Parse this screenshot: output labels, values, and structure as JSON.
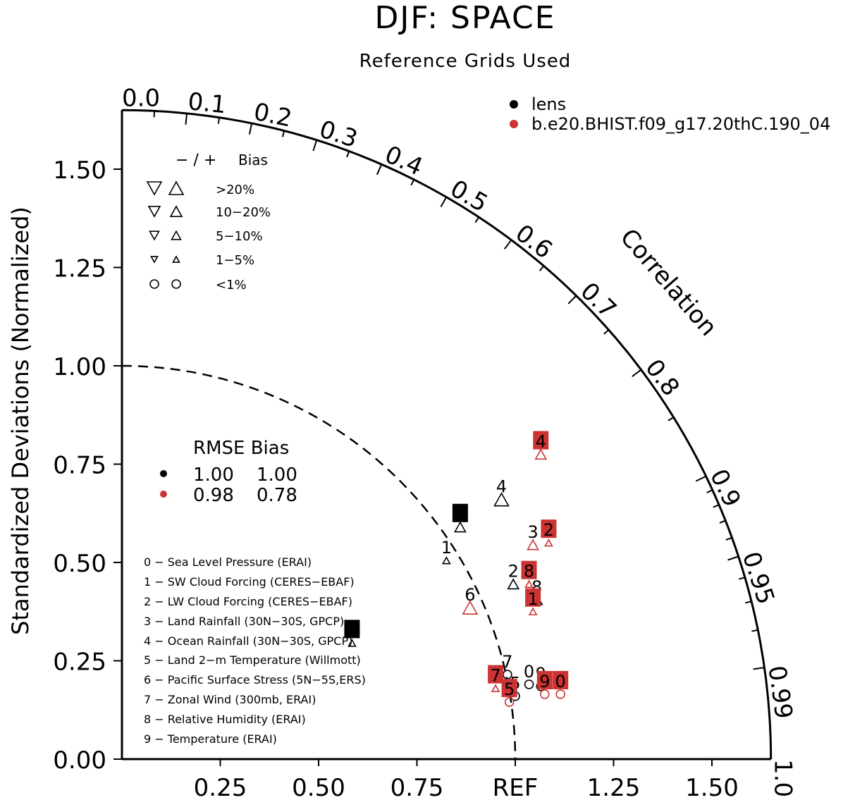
{
  "chart_data": {
    "type": "taylor",
    "title": "DJF: SPACE",
    "subtitle": "Reference Grids Used",
    "ylabel": "Standardized Deviations (Normalized)",
    "correlation_label": "Correlation",
    "ref_label": "REF",
    "std_max": 1.65,
    "x_ticks": [
      "0.25",
      "0.50",
      "0.75",
      "REF",
      "1.25",
      "1.50"
    ],
    "x_tick_values": [
      0.25,
      0.5,
      0.75,
      1.0,
      1.25,
      1.5
    ],
    "y_ticks": [
      "0.00",
      "0.25",
      "0.50",
      "0.75",
      "1.00",
      "1.25",
      "1.50"
    ],
    "y_tick_values": [
      0.0,
      0.25,
      0.5,
      0.75,
      1.0,
      1.25,
      1.5
    ],
    "corr_ticks": [
      {
        "label": "0.0",
        "value": 0.0
      },
      {
        "label": "0.1",
        "value": 0.1
      },
      {
        "label": "0.2",
        "value": 0.2
      },
      {
        "label": "0.3",
        "value": 0.3
      },
      {
        "label": "0.4",
        "value": 0.4
      },
      {
        "label": "0.5",
        "value": 0.5
      },
      {
        "label": "0.6",
        "value": 0.6
      },
      {
        "label": "0.7",
        "value": 0.7
      },
      {
        "label": "0.8",
        "value": 0.8
      },
      {
        "label": "0.9",
        "value": 0.9
      },
      {
        "label": "0.95",
        "value": 0.95
      },
      {
        "label": "0.99",
        "value": 0.99
      },
      {
        "label": "1.0",
        "value": 1.0
      }
    ],
    "corr_minor_ticks": [
      0.05,
      0.15,
      0.25,
      0.35,
      0.45,
      0.55,
      0.65,
      0.75,
      0.85,
      0.91,
      0.92,
      0.93,
      0.94,
      0.96,
      0.97,
      0.98
    ],
    "legend_cases": [
      {
        "name": "lens",
        "color": "#000000"
      },
      {
        "name": "b.e20.BHIST.f09_g17.20thC.190_04",
        "color": "#cc3333"
      }
    ],
    "bias_legend": {
      "header": [
        "− / +",
        "Bias"
      ],
      "rows": [
        {
          "label": ">20%",
          "size": "xl"
        },
        {
          "label": "10−20%",
          "size": "l"
        },
        {
          "label": "5−10%",
          "size": "m"
        },
        {
          "label": "1−5%",
          "size": "s"
        },
        {
          "label": "<1%",
          "size": "circle"
        }
      ]
    },
    "rmse_table": {
      "header": "RMSE Bias",
      "rows": [
        {
          "color": "#000000",
          "rmse": "1.00",
          "bias": "1.00"
        },
        {
          "color": "#cc3333",
          "rmse": "0.98",
          "bias": "0.78"
        }
      ]
    },
    "variables": [
      "0 − Sea Level Pressure (ERAI)",
      "1 − SW Cloud Forcing (CERES−EBAF)",
      "2 − LW Cloud Forcing (CERES−EBAF)",
      "3 − Land Rainfall (30N−30S, GPCP)",
      "4 − Ocean Rainfall (30N−30S, GPCP)",
      "5 − Land 2−m Temperature (Willmott)",
      "6 − Pacific Surface Stress (5N−5S,ERS)",
      "7 − Zonal Wind (300mb, ERAI)",
      "8 − Relative Humidity (ERAI)",
      "9 − Temperature (ERAI)"
    ],
    "series": [
      {
        "name": "lens",
        "color": "#000000",
        "points": [
          {
            "id": "0",
            "x": 1.035,
            "y": 0.19,
            "boxed": false,
            "marker": "circle"
          },
          {
            "id": "1",
            "x": 0.825,
            "y": 0.505,
            "boxed": false,
            "marker": "up-s"
          },
          {
            "id": "2",
            "x": 0.995,
            "y": 0.445,
            "boxed": false,
            "marker": "up-m"
          },
          {
            "id": "3",
            "x": 0.86,
            "y": 0.59,
            "boxed": true,
            "marker": "up-m"
          },
          {
            "id": "4",
            "x": 0.965,
            "y": 0.66,
            "boxed": false,
            "marker": "up-l"
          },
          {
            "id": "5",
            "x": 1.0,
            "y": 0.16,
            "boxed": false,
            "marker": "circle"
          },
          {
            "id": "6",
            "x": 0.585,
            "y": 0.295,
            "boxed": true,
            "marker": "up-s"
          },
          {
            "id": "7",
            "x": 0.98,
            "y": 0.215,
            "boxed": false,
            "marker": "circle"
          },
          {
            "id": "8",
            "x": 1.055,
            "y": 0.405,
            "boxed": false,
            "marker": "up-m"
          },
          {
            "id": "9",
            "x": 1.065,
            "y": 0.185,
            "boxed": false,
            "marker": "circle"
          }
        ]
      },
      {
        "name": "b.e20.BHIST.f09_g17.20thC.190_04",
        "color": "#cc3333",
        "points": [
          {
            "id": "0",
            "x": 1.115,
            "y": 0.165,
            "boxed": true,
            "marker": "circle"
          },
          {
            "id": "1",
            "x": 1.045,
            "y": 0.375,
            "boxed": true,
            "marker": "up-s"
          },
          {
            "id": "2",
            "x": 1.085,
            "y": 0.55,
            "boxed": true,
            "marker": "up-s"
          },
          {
            "id": "3",
            "x": 1.045,
            "y": 0.545,
            "boxed": false,
            "marker": "up-m"
          },
          {
            "id": "4",
            "x": 1.065,
            "y": 0.775,
            "boxed": true,
            "marker": "up-m"
          },
          {
            "id": "5",
            "x": 0.985,
            "y": 0.145,
            "boxed": true,
            "marker": "circle"
          },
          {
            "id": "6",
            "x": 0.885,
            "y": 0.385,
            "boxed": false,
            "marker": "up-l"
          },
          {
            "id": "7",
            "x": 0.95,
            "y": 0.18,
            "boxed": true,
            "marker": "up-s"
          },
          {
            "id": "8",
            "x": 1.035,
            "y": 0.445,
            "boxed": true,
            "marker": "up-s"
          },
          {
            "id": "9",
            "x": 1.075,
            "y": 0.165,
            "boxed": true,
            "marker": "circle"
          }
        ]
      }
    ]
  }
}
